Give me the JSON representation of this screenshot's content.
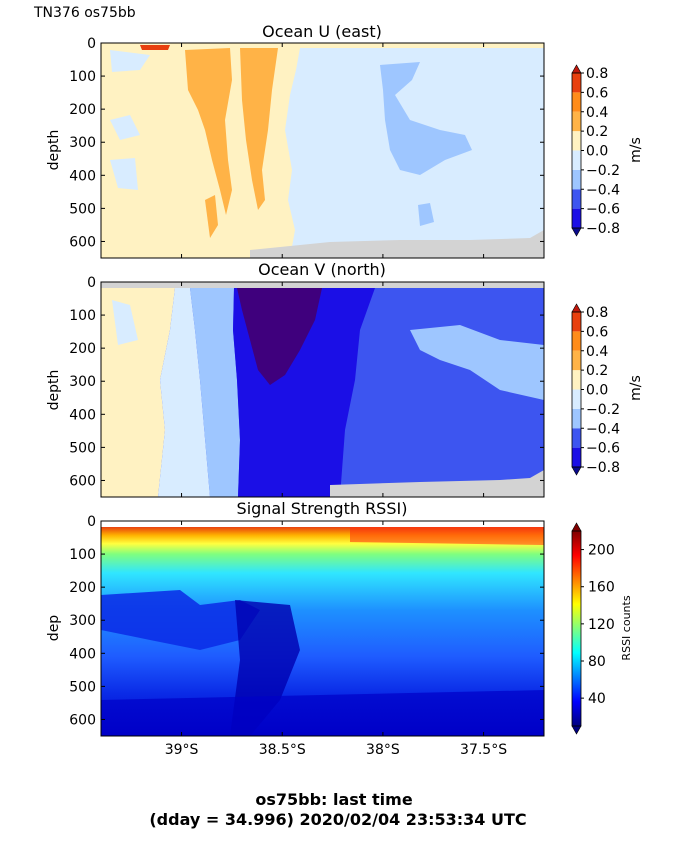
{
  "figure": {
    "corner_label": "TN376 os75bb",
    "footer_line1": "os75bb: last time",
    "footer_line2": "(dday = 34.996) 2020/02/04 23:53:34 UTC"
  },
  "chart_data": [
    {
      "type": "heatmap",
      "title": "Ocean U (east)",
      "xlabel": "",
      "ylabel": "depth",
      "ylim": [
        650,
        0
      ],
      "xlim": [
        -39.4,
        -37.2
      ],
      "yticks": [
        0,
        100,
        200,
        300,
        400,
        500,
        600
      ],
      "grid": false,
      "colorbar": {
        "label": "m/s",
        "ticks": [
          "0.8",
          "0.6",
          "0.4",
          "0.2",
          "0.0",
          "−0.2",
          "−0.4",
          "−0.6",
          "−0.8"
        ],
        "levels": [
          -0.8,
          -0.6,
          -0.4,
          -0.2,
          0.0,
          0.2,
          0.4,
          0.6,
          0.8
        ],
        "colors": [
          "#1b0fe6",
          "#3d55f0",
          "#9ec6ff",
          "#d8ecff",
          "#fff2c2",
          "#ffb347",
          "#ff8c1a",
          "#e8400f"
        ]
      },
      "regions": [
        {
          "x": [
            -39.4,
            -38.9
          ],
          "value": 0.1
        },
        {
          "x": [
            -38.9,
            -38.55
          ],
          "value": 0.25
        },
        {
          "x": [
            -38.55,
            -38.35
          ],
          "value": 0.1
        },
        {
          "x": [
            -38.35,
            -37.2
          ],
          "value": -0.1
        },
        {
          "x": [
            -37.95,
            -37.5
          ],
          "value": -0.3
        }
      ]
    },
    {
      "type": "heatmap",
      "title": "Ocean V (north)",
      "xlabel": "",
      "ylabel": "depth",
      "ylim": [
        650,
        0
      ],
      "xlim": [
        -39.4,
        -37.2
      ],
      "yticks": [
        0,
        100,
        200,
        300,
        400,
        500,
        600
      ],
      "grid": false,
      "colorbar": {
        "label": "m/s",
        "ticks": [
          "0.8",
          "0.6",
          "0.4",
          "0.2",
          "0.0",
          "−0.2",
          "−0.4",
          "−0.6",
          "−0.8"
        ],
        "levels": [
          -0.8,
          -0.6,
          -0.4,
          -0.2,
          0.0,
          0.2,
          0.4,
          0.6,
          0.8
        ],
        "colors": [
          "#1b0fe6",
          "#3d55f0",
          "#9ec6ff",
          "#d8ecff",
          "#fff2c2",
          "#ffb347",
          "#ff8c1a",
          "#e8400f"
        ]
      },
      "regions": [
        {
          "x": [
            -39.4,
            -39.15
          ],
          "value": 0.05
        },
        {
          "x": [
            -39.15,
            -38.95
          ],
          "value": -0.1
        },
        {
          "x": [
            -38.95,
            -38.75
          ],
          "value": -0.3
        },
        {
          "x": [
            -38.75,
            -38.65
          ],
          "value": -0.5
        },
        {
          "x": [
            -38.65,
            -38.25
          ],
          "value": -0.7
        },
        {
          "x": [
            -38.25,
            -37.2
          ],
          "value": -0.5
        }
      ]
    },
    {
      "type": "heatmap",
      "title": "Signal Strength RSSI)",
      "xlabel": "",
      "ylabel": "dep",
      "ylim": [
        650,
        0
      ],
      "xlim": [
        -39.4,
        -37.2
      ],
      "xticks": [
        -39.0,
        -38.5,
        -38.0,
        -37.5
      ],
      "xticklabels": [
        "39°S",
        "38.5°S",
        "38°S",
        "37.5°S"
      ],
      "yticks": [
        0,
        100,
        200,
        300,
        400,
        500,
        600
      ],
      "grid": false,
      "colorbar": {
        "label": "RSSI counts",
        "ticks": [
          "200",
          "160",
          "120",
          "80",
          "40"
        ],
        "tick_values": [
          200,
          160,
          120,
          80,
          40
        ],
        "range": [
          10,
          220
        ]
      },
      "depth_profile": [
        {
          "depth": 20,
          "value": 205
        },
        {
          "depth": 50,
          "value": 150
        },
        {
          "depth": 100,
          "value": 95
        },
        {
          "depth": 200,
          "value": 65
        },
        {
          "depth": 300,
          "value": 45
        },
        {
          "depth": 450,
          "value": 35
        },
        {
          "depth": 600,
          "value": 20
        }
      ]
    }
  ]
}
